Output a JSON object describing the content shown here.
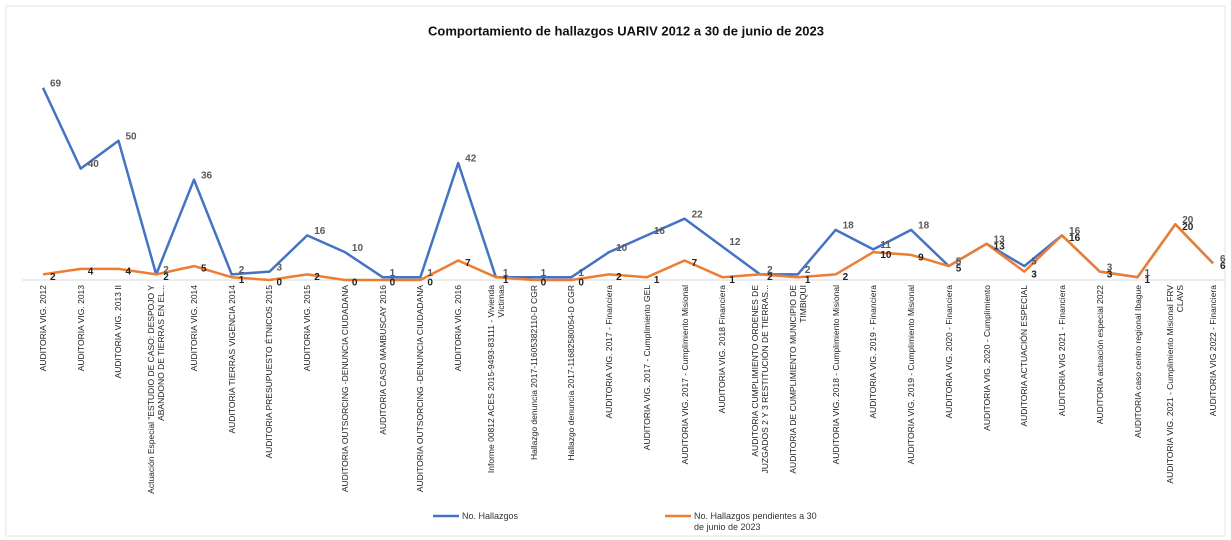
{
  "chart_data": {
    "type": "line",
    "title": "Comportamiento de hallazgos UARIV 2012 a 30 de junio de 2023",
    "categories": [
      "AUDITORIA VIG. 2012",
      "AUDITORIA VIG. 2013",
      "AUDITORIA VIG. 2013 II",
      "Actuación Especial \"ESTUDIO DE CASO: DESPOJO Y ABANDONO DE TIERRAS EN EL...",
      "AUDITORIA VIG. 2014",
      "AUDITORIA TIERRAS VIGENCIA 2014",
      "AUDITORIA PRESUPUESTO ÉTNICOS 2015",
      "AUDITORIA VIG.  2015",
      "AUDITORIA OUTSORCING -DENUNCIA CIUDADANA",
      "AUDITORIA CASO MAMBUSCAY 2016",
      "AUDITORIA OUTSORCING -DENUNCIA CIUDADANA",
      "AUDITORIA VIG. 2016",
      "Informe 00812 ACES 2015-9493-83111 - Vivienda Víctimas",
      "Hallazgo denuncia 2017-11605382110-D CGR",
      "Hallazgo denuncia 2017-11682580054-D CGR",
      "AUDITORIA VIG. 2017 - Financiera",
      "AUDITORIA VIG. 2017 - Cumplimiento GEL",
      "AUDITORIA VIG. 2017 - Cumplimiento Misional",
      "AUDITORIA VIG. 2018 Financiera",
      "AUDITORIA CUMPLIMIENTO ORDENES DE JUZGADOS 2 Y 3 RESTITUCIÓN DE TIERRAS...",
      "AUDITORIA DE CUMPLIMIENTO MUNICIPIO DE TIMBIQUI",
      "AUDITORIA VIG. 2018 - Cumplimiento Misional",
      "AUDITORIA VIG. 2019 - Financiera",
      "AUDITORIA VIG. 2019 - Cumplimiento Misional",
      "AUDITORIA VIG. 2020 - Financiera",
      "AUDITORIA VIG. 2020 - Cumplimiento",
      "AUDITORIA ACTUACIÓN ESPECIAL",
      "AUDITORIA VIG 2021 - Financiera",
      "AUDITORIA actuación especial 2022",
      "AUDITORIA caso centro regional Ibague",
      "AUDITORIA VIG. 2021 - Cumplimiento Misional FRV CLAVS",
      "AUDITORIA VIG 2022 - Financiera"
    ],
    "series": [
      {
        "name": "No. Hallazgos",
        "color": "#4472c4",
        "values": [
          69,
          40,
          50,
          2,
          36,
          2,
          3,
          16,
          10,
          1,
          1,
          42,
          1,
          1,
          1,
          10,
          16,
          22,
          12,
          2,
          2,
          18,
          11,
          18,
          5,
          13,
          5,
          16,
          3,
          1,
          20,
          6
        ]
      },
      {
        "name": "No. Hallazgos pendientes a 30 de junio de 2023",
        "color": "#ed7d31",
        "values": [
          2,
          4,
          4,
          2,
          5,
          1,
          0,
          2,
          0,
          0,
          0,
          7,
          1,
          0,
          0,
          2,
          1,
          7,
          1,
          2,
          1,
          2,
          10,
          9,
          5,
          13,
          3,
          16,
          3,
          1,
          20,
          6
        ]
      }
    ],
    "ylim": [
      0,
      70
    ]
  }
}
